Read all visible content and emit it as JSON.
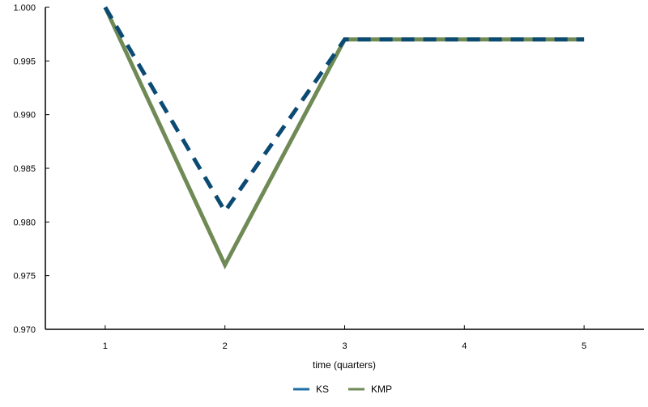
{
  "chart_data": {
    "type": "line",
    "xlabel": "time (quarters)",
    "ylabel": "",
    "x": [
      1,
      2,
      3,
      4,
      5
    ],
    "xlim": [
      0.5,
      5.5
    ],
    "ylim": [
      0.97,
      1.0
    ],
    "xticks": [
      "1",
      "2",
      "3",
      "4",
      "5"
    ],
    "yticks": [
      "1.000",
      "0.995",
      "0.990",
      "0.985",
      "0.980",
      "0.975",
      "0.970"
    ],
    "ytick_values": [
      1.0,
      0.995,
      0.99,
      0.985,
      0.98,
      0.975,
      0.97
    ],
    "grid": false,
    "legend_position": "bottom-center",
    "series": [
      {
        "name": "KS",
        "values": [
          1.0,
          0.981,
          0.997,
          0.997,
          0.997
        ],
        "color": "#0b4a72",
        "style": "dashed",
        "legend_color": "#1f6fa6"
      },
      {
        "name": "KMP",
        "values": [
          1.0,
          0.976,
          0.997,
          0.997,
          0.997
        ],
        "color": "#6f8a55",
        "style": "solid",
        "legend_color": "#6f8a55"
      }
    ]
  }
}
